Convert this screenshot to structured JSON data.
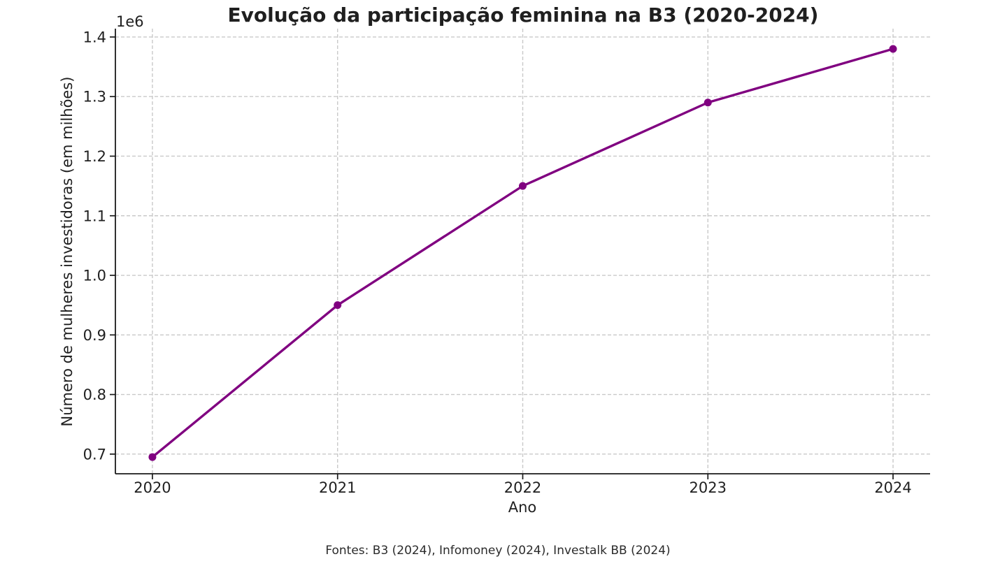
{
  "chart_data": {
    "type": "line",
    "title": "Evolução da participação feminina na B3 (2020-2024)",
    "xlabel": "Ano",
    "ylabel": "Número de mulheres investidoras (em milhões)",
    "x": [
      2020,
      2021,
      2022,
      2023,
      2024
    ],
    "xtick_labels": [
      "2020",
      "2021",
      "2022",
      "2023",
      "2024"
    ],
    "series": [
      {
        "name": "Número de mulheres investidoras",
        "values": [
          695000,
          950000,
          1150000,
          1290000,
          1380000
        ]
      }
    ],
    "ytick_values": [
      700000,
      800000,
      900000,
      1000000,
      1100000,
      1200000,
      1300000,
      1400000
    ],
    "ytick_labels": [
      "0.7",
      "0.8",
      "0.9",
      "1.0",
      "1.1",
      "1.2",
      "1.3",
      "1.4"
    ],
    "y_offset_text": "1e6",
    "xlim": [
      2019.8,
      2024.2
    ],
    "ylim": [
      667000,
      1414000
    ],
    "grid": true,
    "grid_style": "dashed",
    "legend": "none",
    "line_color": "#800080",
    "marker": "o",
    "spine_color": "#1a1a1a",
    "grid_color": "#c9c9c9",
    "sources_note": "Fontes: B3 (2024), Infomoney (2024), Investalk BB (2024)"
  }
}
